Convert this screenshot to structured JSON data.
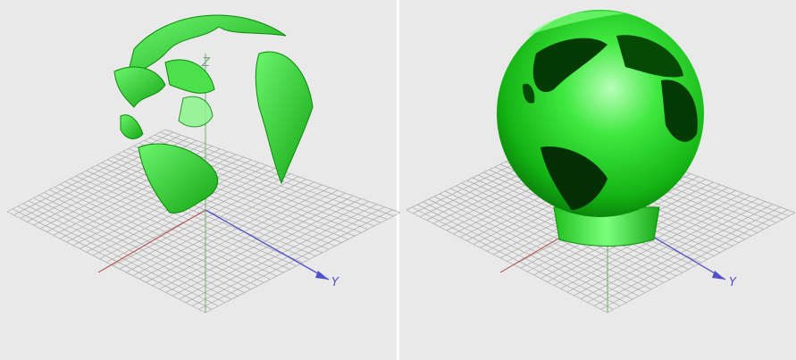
{
  "panels": [
    {
      "axis_labels": [
        "Z",
        "Y"
      ]
    },
    {
      "axis_labels": [
        "Y"
      ]
    }
  ]
}
